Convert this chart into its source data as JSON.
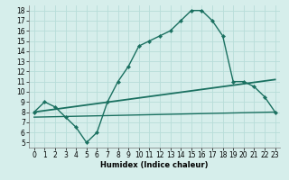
{
  "xlabel": "Humidex (Indice chaleur)",
  "x_ticks": [
    0,
    1,
    2,
    3,
    4,
    5,
    6,
    7,
    8,
    9,
    10,
    11,
    12,
    13,
    14,
    15,
    16,
    17,
    18,
    19,
    20,
    21,
    22,
    23
  ],
  "y_ticks": [
    5,
    6,
    7,
    8,
    9,
    10,
    11,
    12,
    13,
    14,
    15,
    16,
    17,
    18
  ],
  "xlim": [
    -0.5,
    23.5
  ],
  "ylim": [
    4.5,
    18.5
  ],
  "line_color": "#1a7060",
  "bg_color": "#d6eeeb",
  "grid_color": "#b8ddd9",
  "curve1_x": [
    0,
    1,
    2,
    3,
    4,
    5,
    6,
    7,
    8,
    9,
    10,
    11,
    12,
    13,
    14,
    15,
    16,
    17,
    18,
    19,
    20,
    21,
    22,
    23
  ],
  "curve1_y": [
    8.0,
    9.0,
    8.5,
    7.5,
    6.5,
    5.0,
    6.0,
    9.0,
    11.0,
    12.5,
    14.5,
    15.0,
    15.5,
    16.0,
    17.0,
    18.0,
    18.0,
    17.0,
    15.5,
    11.0,
    11.0,
    10.5,
    9.5,
    8.0
  ],
  "line1_x": [
    0,
    23
  ],
  "line1_y": [
    8.0,
    11.2
  ],
  "line2_x": [
    0,
    23
  ],
  "line2_y": [
    7.5,
    8.0
  ]
}
